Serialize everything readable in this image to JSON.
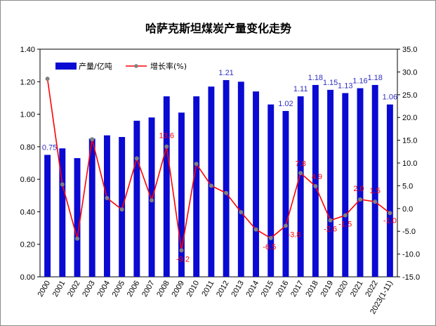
{
  "chart_data": {
    "type": "bar+line",
    "title": "哈萨克斯坦煤炭产量变化走势",
    "categories": [
      "2000",
      "2001",
      "2002",
      "2003",
      "2004",
      "2005",
      "2006",
      "2007",
      "2008",
      "2009",
      "2010",
      "2011",
      "2012",
      "2013",
      "2014",
      "2015",
      "2016",
      "2017",
      "2018",
      "2019",
      "2020",
      "2021",
      "2022",
      "2023(1-11)"
    ],
    "series": [
      {
        "name": "产量/亿吨",
        "type": "bar",
        "axis": "left",
        "color": "#0a0ad2",
        "values": [
          0.75,
          0.79,
          0.73,
          0.85,
          0.87,
          0.86,
          0.96,
          0.98,
          1.11,
          1.01,
          1.11,
          1.17,
          1.21,
          1.2,
          1.14,
          1.06,
          1.02,
          1.11,
          1.18,
          1.15,
          1.13,
          1.16,
          1.18,
          1.06
        ],
        "labels": [
          "0.75",
          "",
          "",
          "",
          "",
          "",
          "",
          "",
          "",
          "",
          "",
          "",
          "1.21",
          "",
          "",
          "",
          "1.02",
          "1.11",
          "1.18",
          "1.15",
          "1.13",
          "1.16",
          "1.18",
          "1.06"
        ]
      },
      {
        "name": "增长率(%)",
        "type": "line",
        "axis": "right",
        "color": "#ff0000",
        "marker_color": "#808080",
        "values": [
          28.5,
          5.3,
          -6.6,
          15.2,
          2.3,
          -0.2,
          11.0,
          1.8,
          13.6,
          -9.2,
          9.8,
          5.0,
          3.4,
          -0.8,
          -4.6,
          -6.5,
          -3.8,
          7.8,
          4.9,
          -2.6,
          -1.5,
          2.0,
          1.5,
          -1.0
        ],
        "labels": [
          "",
          "",
          "",
          "",
          "",
          "",
          "",
          "",
          "13.6",
          "-9.2",
          "",
          "",
          "",
          "",
          "",
          "-6.5",
          "-3.8",
          "7.8",
          "4.9",
          "-2.6",
          "-1.5",
          "2.0",
          "1.5",
          "-1.0"
        ]
      }
    ],
    "y_left": {
      "min": 0,
      "max": 1.4,
      "step": 0.2,
      "tick_labels": [
        "0.00",
        "0.20",
        "0.40",
        "0.60",
        "0.80",
        "1.00",
        "1.20",
        "1.40"
      ]
    },
    "y_right": {
      "min": -15,
      "max": 35,
      "step": 5,
      "tick_labels": [
        "-15.0",
        "-10.0",
        "-5.0",
        "0.0",
        "5.0",
        "10.0",
        "15.0",
        "20.0",
        "25.0",
        "30.0",
        "35.0"
      ]
    },
    "grid": false,
    "legend_position": "top-left"
  }
}
